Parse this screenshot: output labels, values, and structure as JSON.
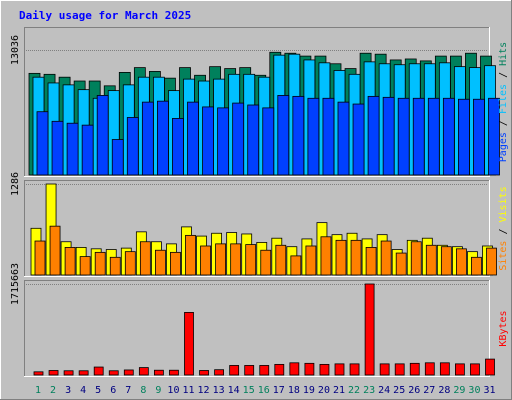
{
  "colors": {
    "background": "#C0C0C0",
    "plot": "#C0C0C0",
    "title": "#0000FF",
    "hits": "#00805C",
    "files": "#00C0FF",
    "pages": "#0040FF",
    "visits": "#FFFF00",
    "sites": "#FF8000",
    "kbytes": "#FF0000",
    "day_normal": "#000080",
    "day_weekend": "#00805C"
  },
  "chart_data": [
    {
      "type": "bar",
      "title": "Daily usage for March 2025",
      "max_label": "13036",
      "ylim": [
        0,
        13036
      ],
      "categories": [
        "1",
        "2",
        "3",
        "4",
        "5",
        "6",
        "7",
        "8",
        "9",
        "10",
        "11",
        "12",
        "13",
        "14",
        "15",
        "16",
        "17",
        "18",
        "19",
        "20",
        "21",
        "22",
        "23",
        "24",
        "25",
        "26",
        "27",
        "28",
        "29",
        "30",
        "31"
      ],
      "weekend_days": [
        "1",
        "2",
        "8",
        "9",
        "15",
        "16",
        "22",
        "23",
        "29",
        "30"
      ],
      "legend": [
        "Pages",
        "Files",
        "Hits"
      ],
      "series": [
        {
          "name": "Hits",
          "values": [
            10600,
            10500,
            10200,
            9800,
            9800,
            9300,
            10700,
            11200,
            10800,
            10100,
            11200,
            10400,
            11300,
            11100,
            11200,
            10400,
            12800,
            12700,
            12400,
            12400,
            11600,
            11100,
            12700,
            12600,
            12000,
            12100,
            11900,
            12400,
            12400,
            12700,
            12400
          ]
        },
        {
          "name": "Files",
          "values": [
            10200,
            9600,
            9400,
            8900,
            8000,
            8800,
            9400,
            10200,
            10200,
            8800,
            10000,
            9800,
            10000,
            10500,
            10500,
            10200,
            12500,
            12600,
            12000,
            11700,
            10900,
            10500,
            11800,
            11600,
            11500,
            11600,
            11600,
            11700,
            11300,
            11200,
            11400
          ]
        },
        {
          "name": "Pages",
          "values": [
            6600,
            5600,
            5400,
            5200,
            8300,
            3700,
            6000,
            7600,
            7700,
            5900,
            7600,
            7100,
            7000,
            7500,
            7300,
            7000,
            8300,
            8200,
            8000,
            8000,
            7600,
            7400,
            8200,
            8100,
            8000,
            8000,
            8000,
            8000,
            7900,
            7900,
            8000
          ]
        }
      ]
    },
    {
      "type": "bar",
      "max_label": "1286",
      "ylim": [
        0,
        1286
      ],
      "categories": [
        "1",
        "2",
        "3",
        "4",
        "5",
        "6",
        "7",
        "8",
        "9",
        "10",
        "11",
        "12",
        "13",
        "14",
        "15",
        "16",
        "17",
        "18",
        "19",
        "20",
        "21",
        "22",
        "23",
        "24",
        "25",
        "26",
        "27",
        "28",
        "29",
        "30",
        "31"
      ],
      "legend": [
        "Sites",
        "Visits"
      ],
      "series": [
        {
          "name": "Visits",
          "values": [
            660,
            1286,
            470,
            390,
            370,
            360,
            380,
            610,
            470,
            440,
            680,
            550,
            590,
            600,
            580,
            460,
            520,
            400,
            510,
            740,
            570,
            590,
            510,
            570,
            360,
            490,
            520,
            420,
            400,
            330,
            410
          ]
        },
        {
          "name": "Sites",
          "values": [
            480,
            690,
            390,
            260,
            320,
            250,
            330,
            470,
            350,
            320,
            560,
            410,
            440,
            440,
            430,
            350,
            420,
            270,
            410,
            540,
            490,
            490,
            390,
            480,
            310,
            470,
            420,
            400,
            370,
            250,
            380
          ]
        }
      ]
    },
    {
      "type": "bar",
      "max_label": "1715663",
      "ylim": [
        0,
        1715663
      ],
      "categories": [
        "1",
        "2",
        "3",
        "4",
        "5",
        "6",
        "7",
        "8",
        "9",
        "10",
        "11",
        "12",
        "13",
        "14",
        "15",
        "16",
        "17",
        "18",
        "19",
        "20",
        "21",
        "22",
        "23",
        "24",
        "25",
        "26",
        "27",
        "28",
        "29",
        "30",
        "31"
      ],
      "legend": [
        "KBytes"
      ],
      "series": [
        {
          "name": "KBytes",
          "values": [
            60000,
            85000,
            80000,
            80000,
            150000,
            80000,
            95000,
            140000,
            90000,
            90000,
            1180000,
            85000,
            100000,
            180000,
            180000,
            180000,
            200000,
            230000,
            220000,
            200000,
            210000,
            210000,
            1715663,
            210000,
            210000,
            220000,
            230000,
            230000,
            210000,
            210000,
            300000
          ]
        }
      ]
    }
  ]
}
